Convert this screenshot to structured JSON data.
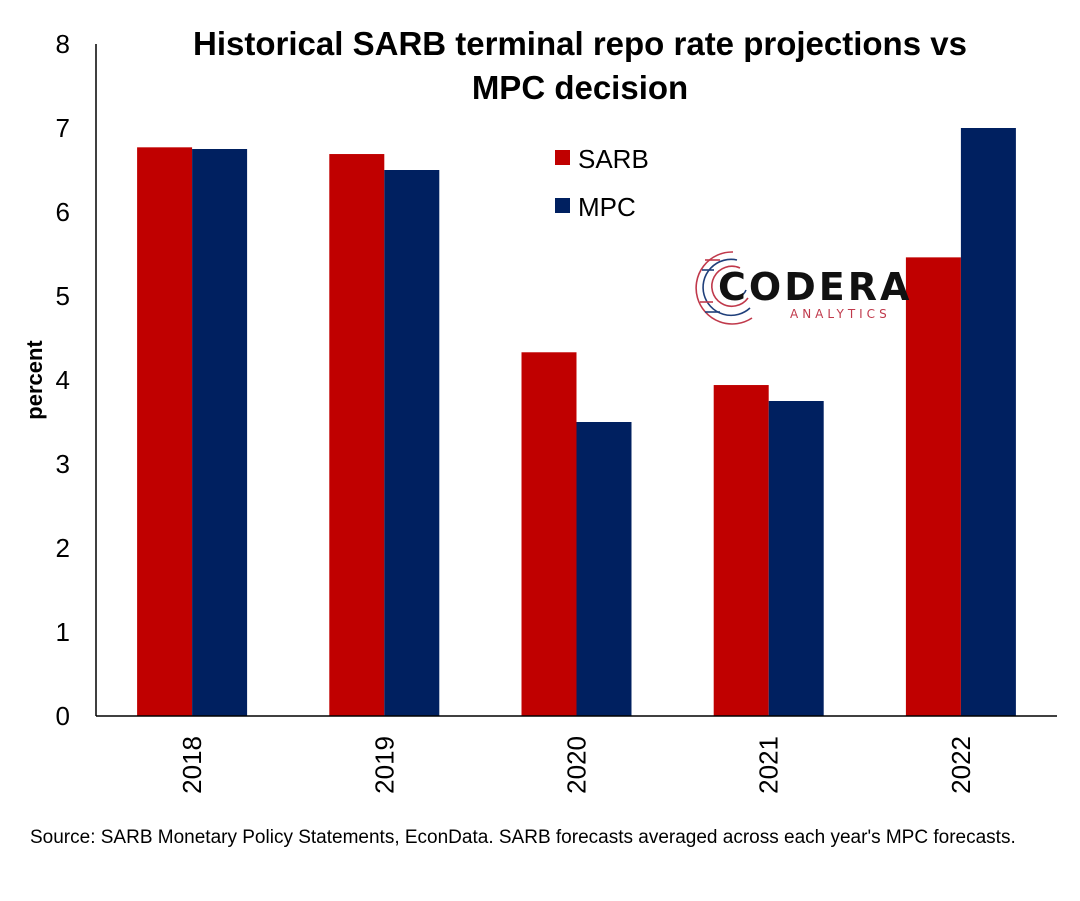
{
  "chart_data": {
    "type": "bar",
    "title_lines": [
      "Historical SARB terminal repo rate projections vs",
      "MPC decision"
    ],
    "ylabel": "percent",
    "xlabel": "",
    "ylim": [
      0,
      8
    ],
    "yticks": [
      0,
      1,
      2,
      3,
      4,
      5,
      6,
      7,
      8
    ],
    "categories": [
      "2018",
      "2019",
      "2020",
      "2021",
      "2022"
    ],
    "series": [
      {
        "name": "SARB",
        "color": "#c00000",
        "values": [
          6.77,
          6.69,
          4.33,
          3.94,
          5.46
        ]
      },
      {
        "name": "MPC",
        "color": "#002060",
        "values": [
          6.75,
          6.5,
          3.5,
          3.75,
          7.0
        ]
      }
    ],
    "legend_position": "top-center",
    "grid": false
  },
  "logo": {
    "name": "CODERA",
    "sub": "ANALYTICS"
  },
  "source_note": "Source: SARB Monetary Policy Statements, EconData. SARB forecasts averaged across each year's MPC forecasts."
}
